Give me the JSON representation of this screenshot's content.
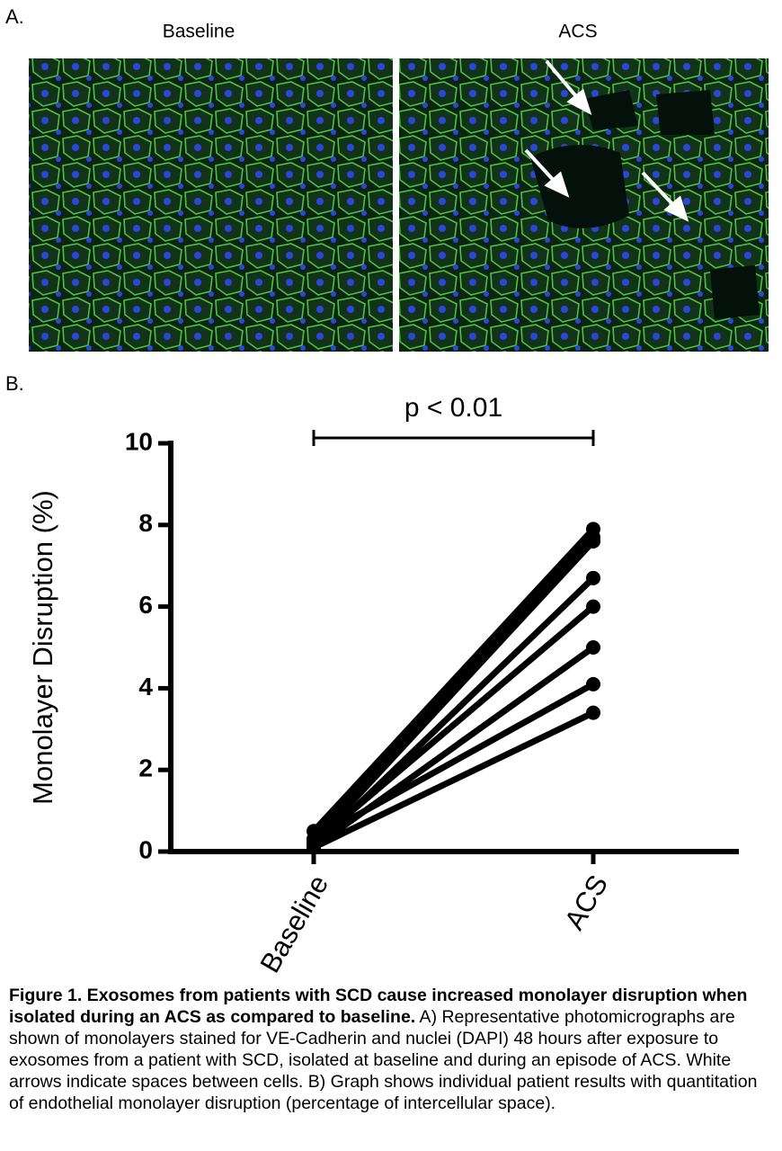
{
  "panel_a": {
    "label": "A.",
    "images": [
      "Baseline",
      "ACS"
    ]
  },
  "chart_data": {
    "type": "line",
    "panel_label": "B.",
    "annotation": "p < 0.01",
    "ylabel": "Monolayer Disruption (%)",
    "categories": [
      "Baseline",
      "ACS"
    ],
    "color": "#000000",
    "series": [
      {
        "values": [
          0.5,
          7.9
        ]
      },
      {
        "values": [
          0.3,
          7.7
        ]
      },
      {
        "values": [
          0.2,
          7.6
        ]
      },
      {
        "values": [
          0.1,
          6.7
        ]
      },
      {
        "values": [
          0.2,
          6.0
        ]
      },
      {
        "values": [
          0.1,
          5.0
        ]
      },
      {
        "values": [
          0.3,
          4.1
        ]
      },
      {
        "values": [
          0.1,
          3.4
        ]
      }
    ],
    "ylim": [
      0,
      10
    ],
    "yticks": [
      0,
      2,
      4,
      6,
      8,
      10
    ]
  },
  "caption": {
    "bold": "Figure 1. Exosomes from patients with SCD cause increased monolayer disruption when isolated during an ACS as compared to baseline.",
    "text": " A) Representative photomicrographs are shown of monolayers stained for VE-Cadherin and nuclei (DAPI) 48 hours after exposure to exosomes from a patient with SCD, isolated at baseline and during an episode of ACS. White arrows indicate spaces between cells. B) Graph shows individual patient results with quantitation of endothelial monolayer disruption (percentage of intercellular space)."
  }
}
